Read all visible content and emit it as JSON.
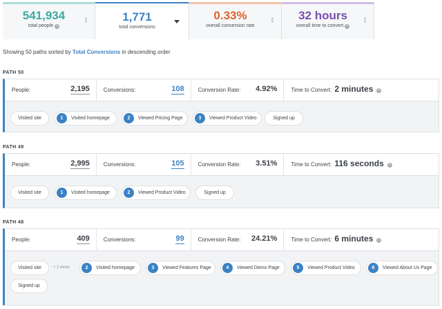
{
  "metrics": [
    {
      "value": "541,934",
      "label": "total people",
      "color": "#3fa9a0",
      "bar": "#a9dcd8",
      "info": "i",
      "control": "sort"
    },
    {
      "value": "1,771",
      "label": "total conversions",
      "color": "#3b82c4",
      "bar": "#3b82c4",
      "info": "",
      "control": "dropdown"
    },
    {
      "value": "0.33%",
      "label": "overall conversion rate",
      "color": "#d9642f",
      "bar": "#f2c3a7",
      "info": "",
      "control": "sort"
    },
    {
      "value": "32 hours",
      "label": "overall time to convert",
      "color": "#7a4fb0",
      "bar": "#cfbde6",
      "info": "i",
      "control": "sort"
    }
  ],
  "summary": {
    "prefix": "Showing 50 paths sorted by ",
    "link": "Total Conversions",
    "suffix": " in descending order"
  },
  "labels": {
    "people": "People:",
    "conversions": "Conversions:",
    "rate": "Conversion Rate:",
    "time": "Time to Convert:"
  },
  "paths": [
    {
      "title": "PATH 50",
      "people": "2,195",
      "conversions": "108",
      "rate": "4.92%",
      "time": "2 minutes",
      "start": "Visited site",
      "more": "",
      "steps": [
        {
          "n": "1",
          "label": "Visited homepage"
        },
        {
          "n": "2",
          "label": "Viewed Pricing Page"
        },
        {
          "n": "3",
          "label": "Viewed Product Video"
        }
      ],
      "end": "Signed up"
    },
    {
      "title": "PATH 49",
      "people": "2,995",
      "conversions": "105",
      "rate": "3.51%",
      "time": "116 seconds",
      "start": "Visited site",
      "more": "",
      "steps": [
        {
          "n": "1",
          "label": "Visited homepage"
        },
        {
          "n": "2",
          "label": "Viewed Product Video"
        }
      ],
      "end": "Signed up"
    },
    {
      "title": "PATH 48",
      "people": "409",
      "conversions": "99",
      "rate": "24.21%",
      "time": "6 minutes",
      "start": "Visited site",
      "more": "+ 1 more",
      "steps": [
        {
          "n": "2",
          "label": "Visited homepage"
        },
        {
          "n": "3",
          "label": "Viewed Features Page"
        },
        {
          "n": "4",
          "label": "Viewed Demo Page"
        },
        {
          "n": "5",
          "label": "Viewed Product Video"
        },
        {
          "n": "6",
          "label": "Viewed About Us Page"
        }
      ],
      "end": "Signed up"
    }
  ],
  "info_glyph": "i"
}
